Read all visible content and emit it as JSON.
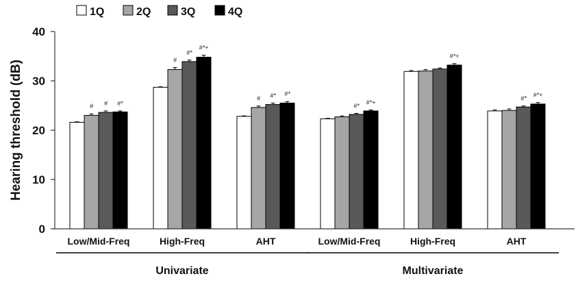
{
  "chart_data": {
    "type": "bar",
    "ylabel": "Hearing threshold (dB)",
    "xlabel": "",
    "ylim": [
      0,
      40
    ],
    "yticks": [
      0,
      10,
      20,
      30,
      40
    ],
    "grid": false,
    "legend_position": "top-left",
    "categories": [
      "Low/Mid-Freq",
      "High-Freq",
      "AHT",
      "Low/Mid-Freq",
      "High-Freq",
      "AHT"
    ],
    "groups": [
      {
        "label": "Univariate",
        "categories": [
          0,
          1,
          2
        ]
      },
      {
        "label": "Multivariate",
        "categories": [
          3,
          4,
          5
        ]
      }
    ],
    "series": [
      {
        "name": "1Q",
        "color": "#ffffff",
        "values": [
          21.6,
          28.7,
          22.8,
          22.3,
          31.9,
          23.9
        ],
        "errors": [
          0.1,
          0.1,
          0.1,
          0.1,
          0.2,
          0.2
        ]
      },
      {
        "name": "2Q",
        "color": "#a6a6a6",
        "values": [
          23.0,
          32.3,
          24.6,
          22.7,
          32.0,
          24.0
        ],
        "errors": [
          0.3,
          0.4,
          0.3,
          0.2,
          0.3,
          0.3
        ]
      },
      {
        "name": "3Q",
        "color": "#595959",
        "values": [
          23.6,
          33.9,
          25.2,
          23.2,
          32.4,
          24.7
        ],
        "errors": [
          0.3,
          0.3,
          0.3,
          0.2,
          0.2,
          0.2
        ]
      },
      {
        "name": "4Q",
        "color": "#000000",
        "values": [
          23.7,
          34.8,
          25.5,
          23.9,
          33.2,
          25.3
        ],
        "errors": [
          0.2,
          0.4,
          0.3,
          0.2,
          0.3,
          0.3
        ]
      }
    ],
    "significance": [
      [
        "",
        "#",
        "#",
        "#*"
      ],
      [
        "",
        "#",
        "#*",
        "#*+"
      ],
      [
        "",
        "#",
        "#*",
        "#*"
      ],
      [
        "",
        "",
        "#*",
        "#*+"
      ],
      [
        "",
        "",
        "",
        "#*+"
      ],
      [
        "",
        "",
        "#*",
        "#*+"
      ]
    ]
  }
}
